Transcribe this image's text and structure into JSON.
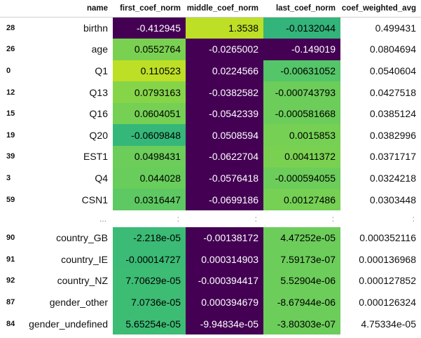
{
  "columns": [
    "name",
    "first_coef_norm",
    "middle_coef_norm",
    "last_coef_norm",
    "coef_weighted_avg"
  ],
  "rows": [
    {
      "index": "28",
      "name": "birthn",
      "first": "-0.412945",
      "first_bg": "#440154",
      "first_fg": "#ffffff",
      "middle": "1.3538",
      "middle_bg": "#bddf26",
      "middle_fg": "#000000",
      "last": "-0.0132044",
      "last_bg": "#33b47a",
      "last_fg": "#000000",
      "weighted": "0.499431"
    },
    {
      "index": "26",
      "name": "age",
      "first": "0.0552764",
      "first_bg": "#7ad151",
      "first_fg": "#000000",
      "middle": "-0.0265002",
      "middle_bg": "#440154",
      "middle_fg": "#ffffff",
      "last": "-0.149019",
      "last_bg": "#440154",
      "last_fg": "#ffffff",
      "weighted": "0.0804694"
    },
    {
      "index": "0",
      "name": "Q1",
      "first": "0.110523",
      "first_bg": "#bddf26",
      "first_fg": "#000000",
      "middle": "0.0224566",
      "middle_bg": "#440154",
      "middle_fg": "#ffffff",
      "last": "-0.00631052",
      "last_bg": "#54c568",
      "last_fg": "#000000",
      "weighted": "0.0540604"
    },
    {
      "index": "12",
      "name": "Q13",
      "first": "0.0793163",
      "first_bg": "#86d549",
      "first_fg": "#000000",
      "middle": "-0.0382582",
      "middle_bg": "#440154",
      "middle_fg": "#ffffff",
      "last": "-0.000743793",
      "last_bg": "#6ccd5a",
      "last_fg": "#000000",
      "weighted": "0.0427518"
    },
    {
      "index": "15",
      "name": "Q16",
      "first": "0.0604051",
      "first_bg": "#75d054",
      "first_fg": "#000000",
      "middle": "-0.0542339",
      "middle_bg": "#440154",
      "middle_fg": "#ffffff",
      "last": "-0.000581668",
      "last_bg": "#6ccd5a",
      "last_fg": "#000000",
      "weighted": "0.0385124"
    },
    {
      "index": "19",
      "name": "Q20",
      "first": "-0.0609848",
      "first_bg": "#35b779",
      "first_fg": "#000000",
      "middle": "0.0508594",
      "middle_bg": "#440154",
      "middle_fg": "#ffffff",
      "last": "0.0015853",
      "last_bg": "#75d054",
      "last_fg": "#000000",
      "weighted": "0.0382996"
    },
    {
      "index": "39",
      "name": "EST1",
      "first": "0.0498431",
      "first_bg": "#6ccd5a",
      "first_fg": "#000000",
      "middle": "-0.0622704",
      "middle_bg": "#440154",
      "middle_fg": "#ffffff",
      "last": "0.00411372",
      "last_bg": "#7ad151",
      "last_fg": "#000000",
      "weighted": "0.0371717"
    },
    {
      "index": "3",
      "name": "Q4",
      "first": "0.044028",
      "first_bg": "#68cd5b",
      "first_fg": "#000000",
      "middle": "-0.0576418",
      "middle_bg": "#440154",
      "middle_fg": "#ffffff",
      "last": "-0.000594055",
      "last_bg": "#6ccd5a",
      "last_fg": "#000000",
      "weighted": "0.0324218"
    },
    {
      "index": "59",
      "name": "CSN1",
      "first": "0.0316447",
      "first_bg": "#5ec962",
      "first_fg": "#000000",
      "middle": "-0.0699186",
      "middle_bg": "#440154",
      "middle_fg": "#ffffff",
      "last": "0.00127486",
      "last_bg": "#75d054",
      "last_fg": "#000000",
      "weighted": "0.0303448"
    }
  ],
  "ellipsis": {
    "name": "...",
    "first": ":",
    "middle": ":",
    "last": ":",
    "weighted": ":"
  },
  "rows_tail": [
    {
      "index": "90",
      "name": "country_GB",
      "first": "-2.218e-05",
      "first_bg": "#3bbb75",
      "first_fg": "#000000",
      "middle": "-0.00138172",
      "middle_bg": "#440154",
      "middle_fg": "#ffffff",
      "last": "4.47252e-05",
      "last_bg": "#6ccd5a",
      "last_fg": "#000000",
      "weighted": "0.000352116"
    },
    {
      "index": "91",
      "name": "country_IE",
      "first": "-0.00014727",
      "first_bg": "#3bbb75",
      "first_fg": "#000000",
      "middle": "0.000314903",
      "middle_bg": "#440154",
      "middle_fg": "#ffffff",
      "last": "7.59173e-07",
      "last_bg": "#6ccd5a",
      "last_fg": "#000000",
      "weighted": "0.000136968"
    },
    {
      "index": "92",
      "name": "country_NZ",
      "first": "7.70629e-05",
      "first_bg": "#3dbc74",
      "first_fg": "#000000",
      "middle": "-0.000394417",
      "middle_bg": "#440154",
      "middle_fg": "#ffffff",
      "last": "5.52904e-06",
      "last_bg": "#6ccd5a",
      "last_fg": "#000000",
      "weighted": "0.000127852"
    },
    {
      "index": "87",
      "name": "gender_other",
      "first": "7.0736e-05",
      "first_bg": "#3dbc74",
      "first_fg": "#000000",
      "middle": "0.000394679",
      "middle_bg": "#440154",
      "middle_fg": "#ffffff",
      "last": "-8.67944e-06",
      "last_bg": "#6ccd5a",
      "last_fg": "#000000",
      "weighted": "0.000126324"
    },
    {
      "index": "84",
      "name": "gender_undefined",
      "first": "5.65254e-05",
      "first_bg": "#3dbc74",
      "first_fg": "#000000",
      "middle": "-9.94834e-05",
      "middle_bg": "#440154",
      "middle_fg": "#ffffff",
      "last": "-3.80303e-07",
      "last_bg": "#6ccd5a",
      "last_fg": "#000000",
      "weighted": "4.75334e-05"
    }
  ]
}
